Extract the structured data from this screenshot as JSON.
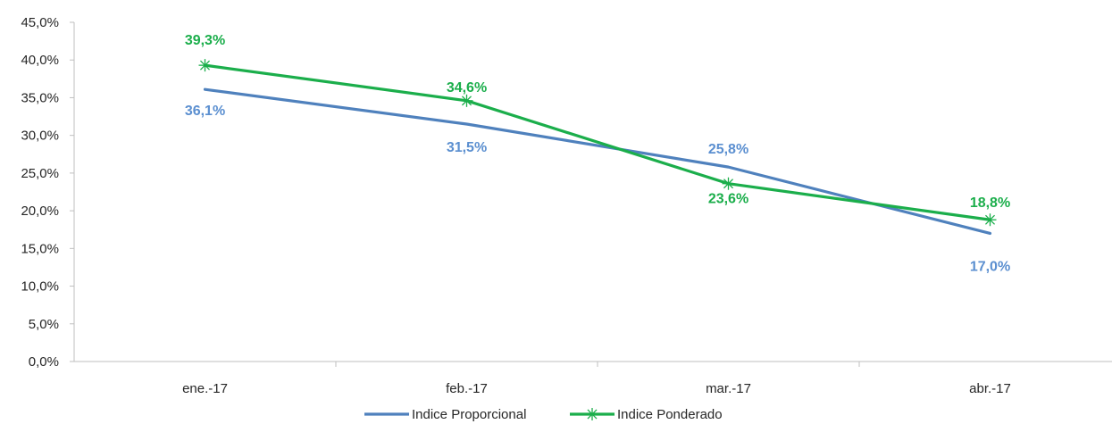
{
  "chart_data": {
    "type": "line",
    "categories": [
      "ene.-17",
      "feb.-17",
      "mar.-17",
      "abr.-17"
    ],
    "ylim": [
      0,
      45
    ],
    "y_ticks": [
      0,
      5,
      10,
      15,
      20,
      25,
      30,
      35,
      40,
      45
    ],
    "y_tick_labels": [
      "0,0%",
      "5,0%",
      "10,0%",
      "15,0%",
      "20,0%",
      "25,0%",
      "30,0%",
      "35,0%",
      "40,0%",
      "45,0%"
    ],
    "grid": false,
    "legend_position": "bottom",
    "series": [
      {
        "name": "Indice Proporcional",
        "values": [
          36.1,
          31.5,
          25.8,
          17.0
        ],
        "labels": [
          "36,1%",
          "31,5%",
          "25,8%",
          "17,0%"
        ],
        "color": "#4F81BD",
        "label_color": "#5B8FD0",
        "marker": "none"
      },
      {
        "name": "Indice Ponderado",
        "values": [
          39.3,
          34.6,
          23.6,
          18.8
        ],
        "labels": [
          "39,3%",
          "34,6%",
          "23,6%",
          "18,8%"
        ],
        "color": "#1BAE4B",
        "label_color": "#1BAE4B",
        "marker": "star"
      }
    ]
  }
}
